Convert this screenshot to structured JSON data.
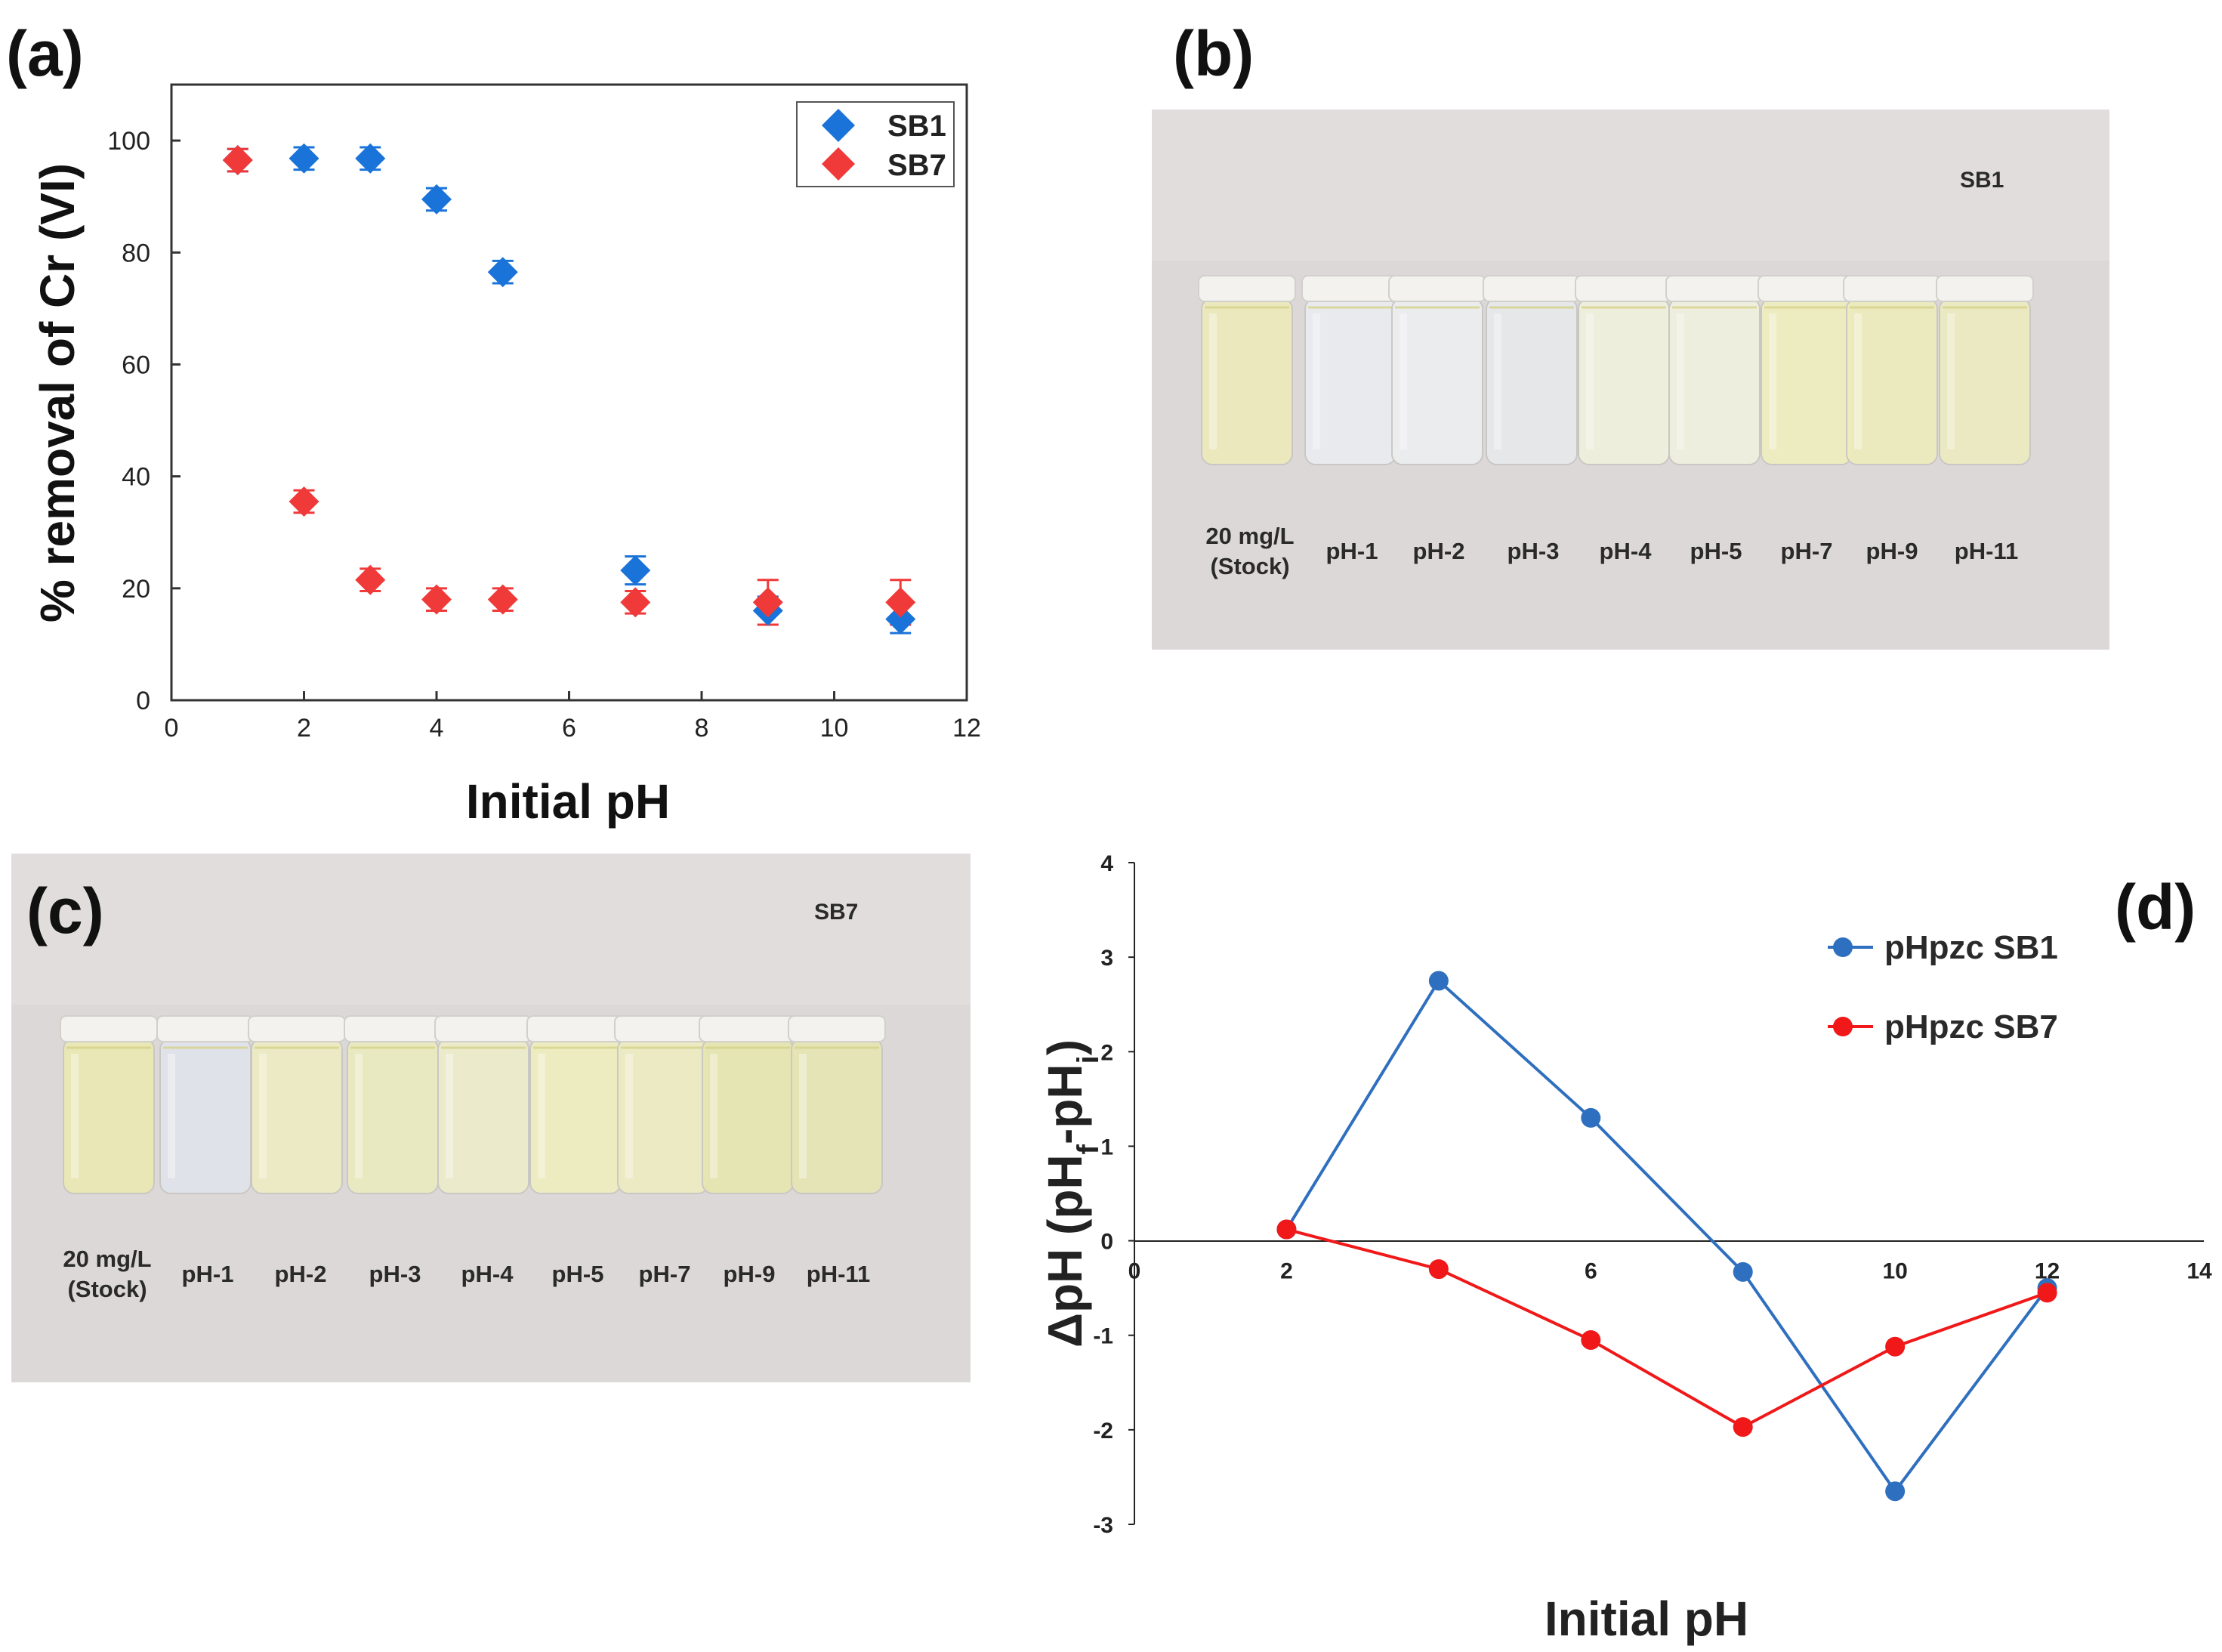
{
  "chart_data": [
    {
      "panel": "(a)",
      "type": "scatter",
      "title": "",
      "xlabel": "Initial pH",
      "ylabel": "% removal of Cr (VI)",
      "xlim": [
        0,
        12
      ],
      "ylim": [
        0,
        110
      ],
      "xticks": [
        0,
        2,
        4,
        6,
        8,
        10,
        12
      ],
      "yticks": [
        0,
        20,
        40,
        60,
        80,
        100
      ],
      "legend": "top-right",
      "series": [
        {
          "name": "SB1",
          "color": "#1a73d9",
          "marker": "diamond",
          "points": [
            {
              "x": 1,
              "y": 96.5,
              "err": 2
            },
            {
              "x": 2,
              "y": 96.8,
              "err": 2
            },
            {
              "x": 3,
              "y": 96.8,
              "err": 2
            },
            {
              "x": 4,
              "y": 89.5,
              "err": 2
            },
            {
              "x": 5,
              "y": 76.5,
              "err": 2
            },
            {
              "x": 7,
              "y": 23.2,
              "err": 2.5
            },
            {
              "x": 9,
              "y": 16,
              "err": 2.5
            },
            {
              "x": 11,
              "y": 14.5,
              "err": 2.5
            }
          ]
        },
        {
          "name": "SB7",
          "color": "#f03a3a",
          "marker": "diamond",
          "points": [
            {
              "x": 1,
              "y": 96.5,
              "err": 2
            },
            {
              "x": 2,
              "y": 35.5,
              "err": 2
            },
            {
              "x": 3,
              "y": 21.5,
              "err": 2
            },
            {
              "x": 4,
              "y": 18,
              "err": 2
            },
            {
              "x": 5,
              "y": 18,
              "err": 2
            },
            {
              "x": 7,
              "y": 17.5,
              "err": 2
            },
            {
              "x": 9,
              "y": 17.5,
              "err": 4
            },
            {
              "x": 11,
              "y": 17.5,
              "err": 4
            }
          ]
        }
      ]
    },
    {
      "panel": "(d)",
      "type": "line",
      "title": "",
      "xlabel": "Initial pH",
      "ylabel_main": "ΔpH (pH",
      "ylabel_sub1": "f",
      "ylabel_mid": "-pH",
      "ylabel_sub2": "i",
      "ylabel_end": ")",
      "xlim": [
        0,
        14
      ],
      "ylim": [
        -3,
        4
      ],
      "xticks": [
        0,
        2,
        4,
        6,
        8,
        10,
        12,
        14
      ],
      "yticks": [
        -3,
        -2,
        -1,
        0,
        1,
        2,
        3,
        4
      ],
      "legend": "top-right",
      "series": [
        {
          "name": "pHpzc SB1",
          "color": "#2f6fbf",
          "points": [
            {
              "x": 2,
              "y": 0.12
            },
            {
              "x": 4,
              "y": 2.75
            },
            {
              "x": 6,
              "y": 1.3
            },
            {
              "x": 8,
              "y": -0.33
            },
            {
              "x": 10,
              "y": -2.65
            },
            {
              "x": 12,
              "y": -0.5
            }
          ]
        },
        {
          "name": "pHpzc SB7",
          "color": "#f01818",
          "points": [
            {
              "x": 2,
              "y": 0.12
            },
            {
              "x": 4,
              "y": -0.3
            },
            {
              "x": 6,
              "y": -1.05
            },
            {
              "x": 8,
              "y": -1.97
            },
            {
              "x": 10,
              "y": -1.12
            },
            {
              "x": 12,
              "y": -0.55
            }
          ]
        }
      ]
    }
  ],
  "panels": {
    "b": {
      "label": "(b)",
      "tag": "SB1",
      "stock_line1": "20 mg/L",
      "stock_line2": "(Stock)",
      "vials": [
        "pH-1",
        "pH-2",
        "pH-3",
        "pH-4",
        "pH-5",
        "pH-7",
        "pH-9",
        "pH-11"
      ]
    },
    "c": {
      "label": "(c)",
      "tag": "SB7",
      "stock_line1": "20 mg/L",
      "stock_line2": "(Stock)",
      "vials": [
        "pH-1",
        "pH-2",
        "pH-3",
        "pH-4",
        "pH-5",
        "pH-7",
        "pH-9",
        "pH-11"
      ]
    }
  },
  "colors": {
    "photo_background": "#d9d6d6",
    "sb1_solution_tints": [
      "#ece9bd",
      "#e9ecf0",
      "#eceef0",
      "#e6e8ea",
      "#eef0dc",
      "#eef0de",
      "#eeeebf",
      "#ececbd",
      "#ebeac0"
    ],
    "sb7_solution_tints": [
      "#e9e8b4",
      "#e1e3ea",
      "#ecebc4",
      "#eaeac0",
      "#ecebcb",
      "#eeeec0",
      "#ececc2",
      "#e6e6b2",
      "#e5e5b6"
    ]
  }
}
